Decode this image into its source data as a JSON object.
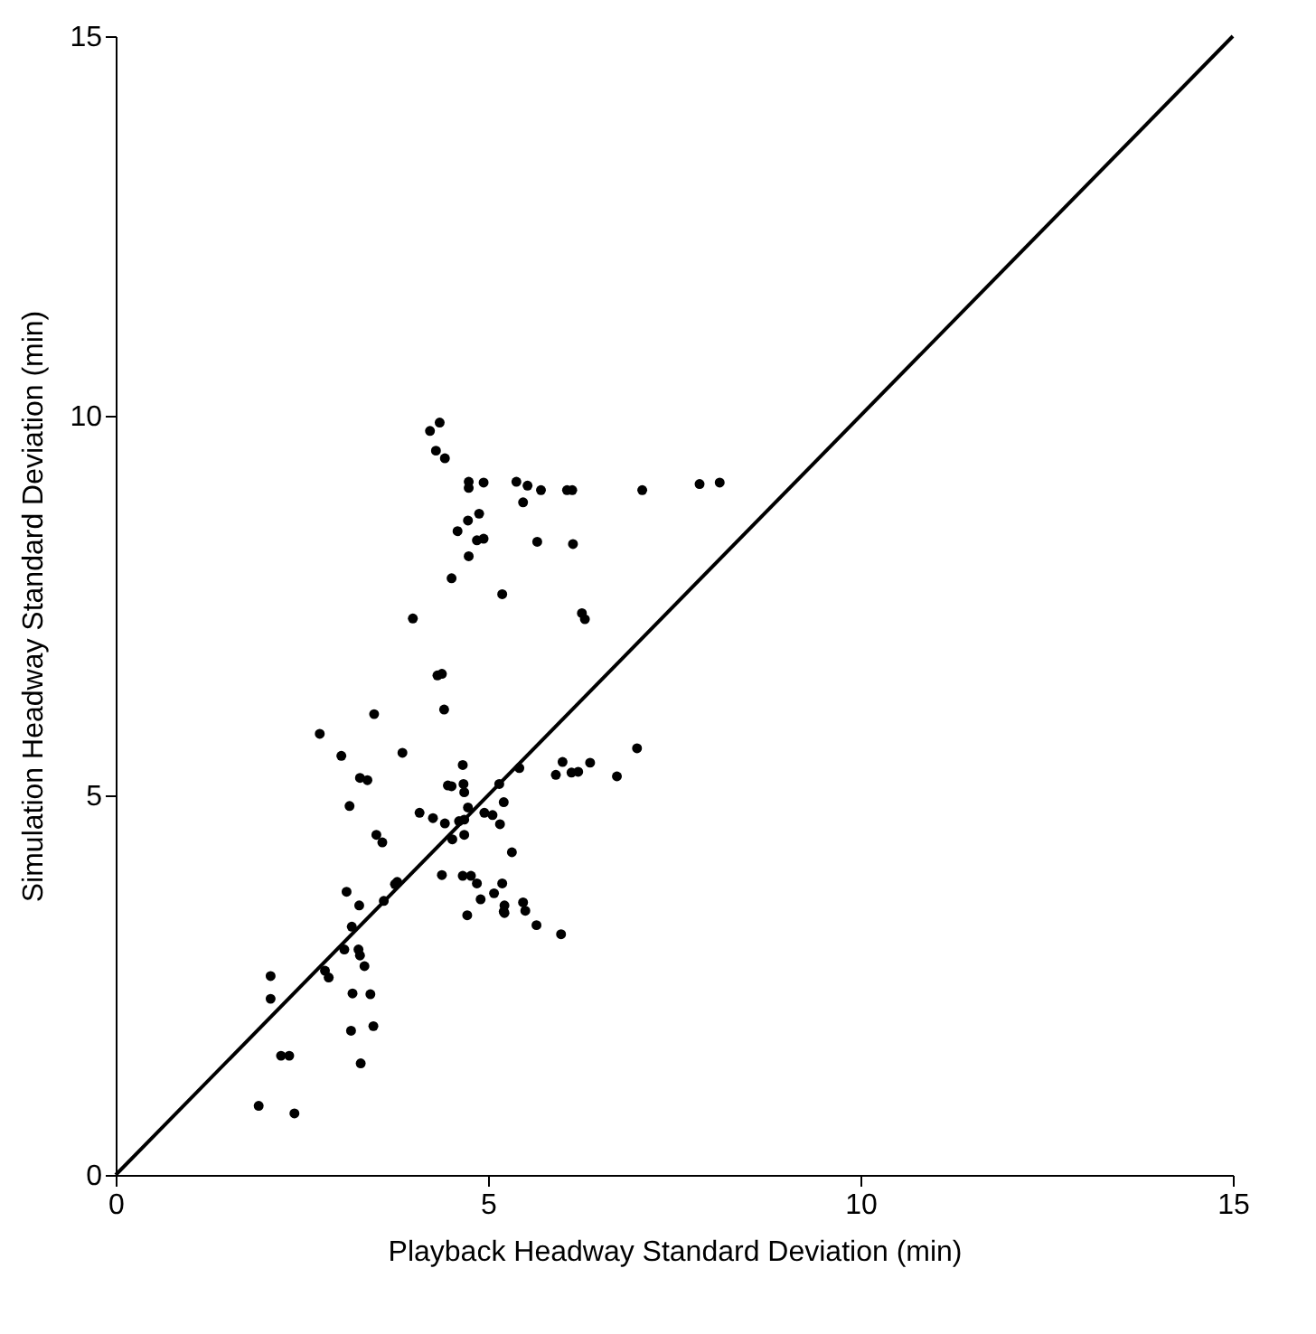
{
  "chart_data": {
    "type": "scatter",
    "xlabel": "Playback Headway Standard Deviation (min)",
    "ylabel": "Simulation Headway Standard Deviation (min)",
    "xlim": [
      0,
      15
    ],
    "ylim": [
      0,
      15
    ],
    "xticks": [
      0,
      5,
      10,
      15
    ],
    "yticks": [
      0,
      5,
      10,
      15
    ],
    "grid": false,
    "legend": false,
    "marker": "circle",
    "series": [
      {
        "color": "#000000",
        "x": [
          4.22,
          4.35,
          4.3,
          4.42,
          4.74,
          4.74,
          4.94,
          4.88,
          4.73,
          4.59,
          4.85,
          4.94,
          4.74,
          4.51,
          5.19,
          3.99,
          5.38,
          5.53,
          5.47,
          5.71,
          6.06,
          6.13,
          7.07,
          7.84,
          8.11,
          5.66,
          6.14,
          6.26,
          6.3,
          4.32,
          4.38,
          4.41,
          3.47,
          2.74,
          3.03,
          3.85,
          4.66,
          3.28,
          3.38,
          3.14,
          3.5,
          3.58,
          4.08,
          4.26,
          4.42,
          4.46,
          4.51,
          4.67,
          4.68,
          4.73,
          4.61,
          4.68,
          4.68,
          4.52,
          5.15,
          5.21,
          4.95,
          5.06,
          5.16,
          4.38,
          4.66,
          4.77,
          4.85,
          5.19,
          5.08,
          4.9,
          4.72,
          5.21,
          3.1,
          3.27,
          3.6,
          3.75,
          3.78,
          3.17,
          3.07,
          3.26,
          3.28,
          3.34,
          2.81,
          2.86,
          2.08,
          2.08,
          3.18,
          3.42,
          3.16,
          3.46,
          2.22,
          2.33,
          3.29,
          1.92,
          2.4,
          5.42,
          6.0,
          5.91,
          6.12,
          6.21,
          6.37,
          6.73,
          7.0,
          5.32,
          5.22,
          5.22,
          5.47,
          5.5,
          5.65,
          5.98
        ],
        "values": [
          9.8,
          9.91,
          9.54,
          9.44,
          9.13,
          9.05,
          9.12,
          8.71,
          8.62,
          8.48,
          8.36,
          8.38,
          8.15,
          7.86,
          7.65,
          7.33,
          9.13,
          9.08,
          8.86,
          9.02,
          9.02,
          9.02,
          9.02,
          9.1,
          9.12,
          8.34,
          8.31,
          7.4,
          7.32,
          6.58,
          6.6,
          6.13,
          6.07,
          5.81,
          5.52,
          5.56,
          5.4,
          5.23,
          5.2,
          4.86,
          4.48,
          4.38,
          4.77,
          4.7,
          4.63,
          5.13,
          5.12,
          5.15,
          5.04,
          4.84,
          4.66,
          4.68,
          4.48,
          4.42,
          5.15,
          4.91,
          4.77,
          4.74,
          4.62,
          3.95,
          3.94,
          3.94,
          3.84,
          3.84,
          3.71,
          3.63,
          3.42,
          3.47,
          3.73,
          3.55,
          3.61,
          3.83,
          3.86,
          3.27,
          2.97,
          2.97,
          2.89,
          2.75,
          2.69,
          2.6,
          2.62,
          2.32,
          2.39,
          2.38,
          1.9,
          1.96,
          1.57,
          1.57,
          1.47,
          0.91,
          0.81,
          5.36,
          5.44,
          5.27,
          5.3,
          5.31,
          5.43,
          5.25,
          5.62,
          4.25,
          3.55,
          3.45,
          3.59,
          3.48,
          3.29,
          3.17
        ]
      },
      {
        "type": "line",
        "marker": "none",
        "color": "#000000",
        "x": [
          0,
          15
        ],
        "values": [
          0,
          15
        ]
      }
    ]
  }
}
